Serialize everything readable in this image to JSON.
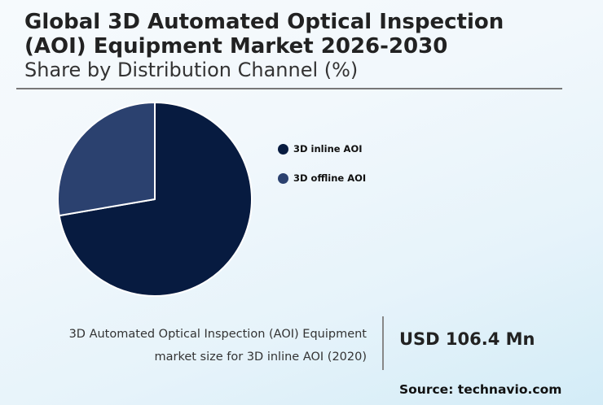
{
  "header": {
    "title": "Global 3D Automated Optical Inspection (AOI) Equipment Market 2026-2030",
    "subtitle": "Share by Distribution Channel (%)"
  },
  "legend": {
    "items": [
      {
        "label": "3D inline AOI",
        "color": "#071b40"
      },
      {
        "label": "3D offline AOI",
        "color": "#2b416f"
      }
    ]
  },
  "kpi": {
    "label_line1": "3D Automated Optical Inspection (AOI) Equipment",
    "label_line2": "market size for 3D inline AOI (2020)",
    "value": "USD 106.4 Mn"
  },
  "footer": {
    "source": "Source: technavio.com"
  },
  "chart_data": {
    "type": "pie",
    "title": "Global 3D Automated Optical Inspection (AOI) Equipment Market 2026-2030",
    "subtitle": "Share by Distribution Channel (%)",
    "categories": [
      "3D inline AOI",
      "3D offline AOI"
    ],
    "values": [
      72.3,
      27.7
    ],
    "colors": [
      "#071b40",
      "#2b416f"
    ],
    "legend_position": "right",
    "annotations": [
      "3D Automated Optical Inspection (AOI) Equipment market size for 3D inline AOI (2020): USD 106.4 Mn",
      "Source: technavio.com"
    ]
  }
}
